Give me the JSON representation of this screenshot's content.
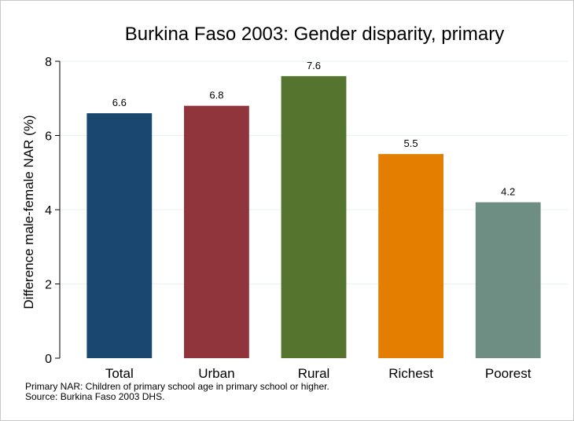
{
  "chart_data": {
    "type": "bar",
    "title": "Burkina Faso 2003: Gender disparity, primary",
    "ylabel": "Difference male-female NAR (%)",
    "xlabel": "",
    "ylim": [
      0,
      8
    ],
    "yticks": [
      0,
      2,
      4,
      6,
      8
    ],
    "grid": true,
    "categories": [
      "Total",
      "Urban",
      "Rural",
      "Richest",
      "Poorest"
    ],
    "values": [
      6.6,
      6.8,
      7.6,
      5.5,
      4.2
    ],
    "value_labels": [
      "6.6",
      "6.8",
      "7.6",
      "5.5",
      "4.2"
    ],
    "colors": [
      "#1a476f",
      "#90353b",
      "#55752f",
      "#e37e00",
      "#6e8e84"
    ],
    "notes": [
      "Primary NAR: Children of primary school age in primary school or higher.",
      "Source: Burkina Faso 2003 DHS."
    ]
  }
}
